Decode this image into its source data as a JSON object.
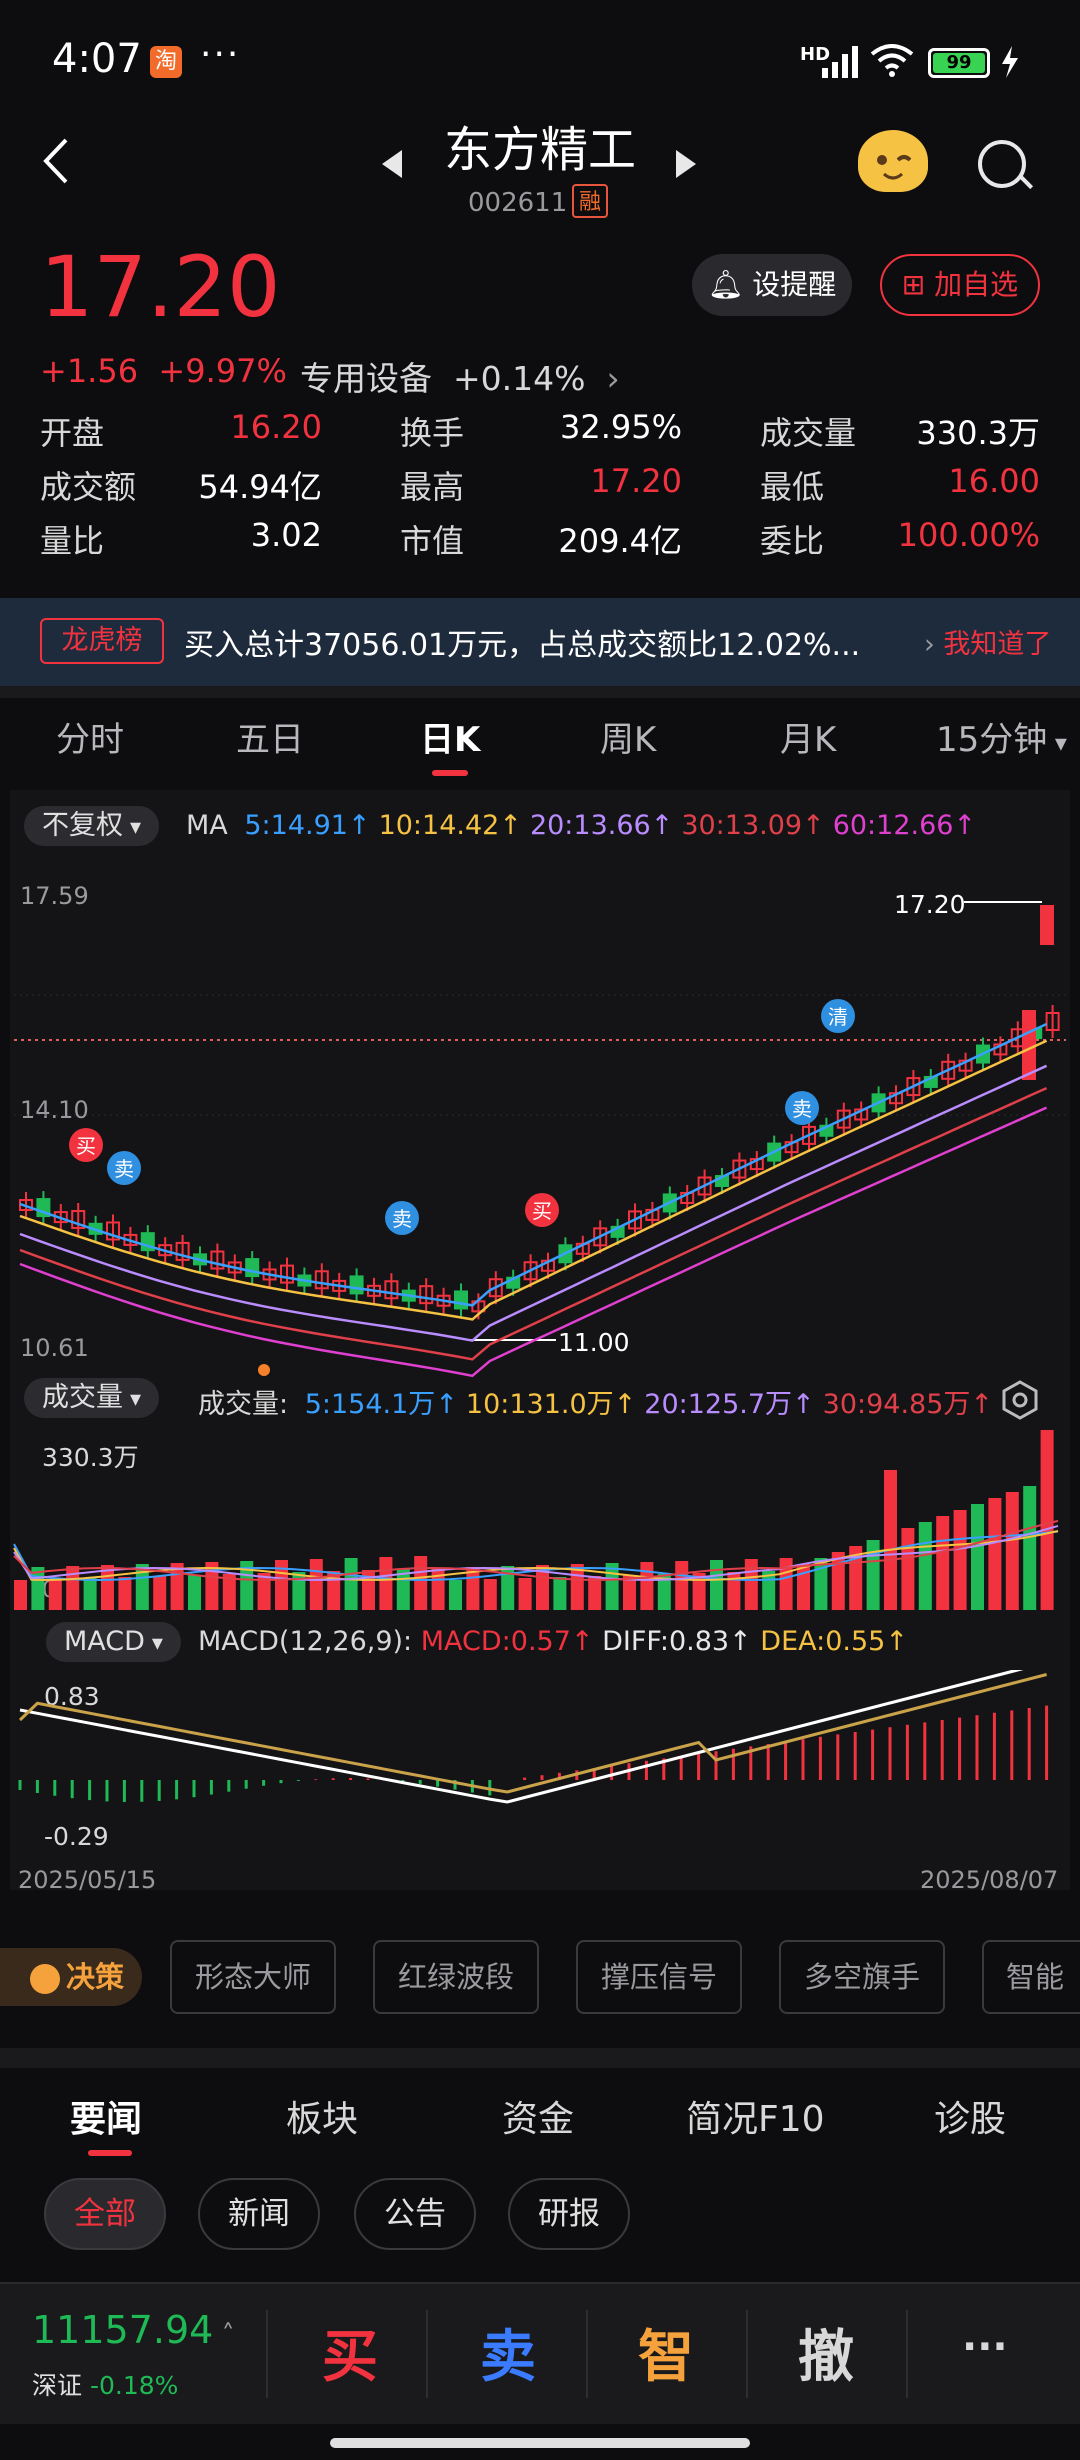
{
  "status_bar": {
    "time": "4:07",
    "app_badge": "淘",
    "more": "···",
    "network": "HD",
    "battery": "99"
  },
  "header": {
    "title": "东方精工",
    "code": "002611",
    "margin_badge": "融"
  },
  "quote": {
    "price": "17.20",
    "change": "+1.56",
    "change_pct": "+9.97%",
    "sector": "专用设备",
    "sector_pct": "+0.14%",
    "alert_label": "设提醒",
    "fav_label": "加自选",
    "fields": [
      {
        "k": "开盘",
        "v": "16.20",
        "color": "red"
      },
      {
        "k": "换手",
        "v": "32.95%",
        "color": "white"
      },
      {
        "k": "成交量",
        "v": "330.3万",
        "color": "white"
      },
      {
        "k": "成交额",
        "v": "54.94亿",
        "color": "white"
      },
      {
        "k": "最高",
        "v": "17.20",
        "color": "red"
      },
      {
        "k": "最低",
        "v": "16.00",
        "color": "red"
      },
      {
        "k": "量比",
        "v": "3.02",
        "color": "white"
      },
      {
        "k": "市值",
        "v": "209.4亿",
        "color": "white"
      },
      {
        "k": "委比",
        "v": "100.00%",
        "color": "red"
      }
    ]
  },
  "banner": {
    "tag": "龙虎榜",
    "text": "买入总计37056.01万元，占总成交额比12.02%...",
    "dismiss": "我知道了"
  },
  "period_tabs": [
    "分时",
    "五日",
    "日K",
    "周K",
    "月K",
    "15分钟"
  ],
  "kchart": {
    "adjust": "不复权",
    "ma_label": "MA",
    "ma": [
      "5:14.91↑",
      "10:14.42↑",
      "20:13.66↑",
      "30:13.09↑",
      "60:12.66↑"
    ],
    "ma_colors": [
      "#3aa0ff",
      "#f6c243",
      "#b98cff",
      "#e0404a",
      "#e040d0"
    ],
    "y_top": "17.59",
    "y_mid": "14.10",
    "y_bottom": "10.61",
    "high_label": "17.20",
    "low_label": "11.00",
    "signal_buy": "买",
    "signal_sell": "卖",
    "signal_clear": "清"
  },
  "volume": {
    "selector": "成交量",
    "label": "成交量:",
    "ma": [
      "5:154.1万↑",
      "10:131.0万↑",
      "20:125.7万↑",
      "30:94.85万↑"
    ],
    "ma_colors": [
      "#3aa0ff",
      "#f6c243",
      "#b98cff",
      "#e0404a"
    ],
    "y_top": "330.3万",
    "y_zero": "0"
  },
  "macd": {
    "selector": "MACD",
    "params": "MACD(12,26,9):",
    "macd": "MACD:0.57↑",
    "diff": "DIFF:0.83↑",
    "dea": "DEA:0.55↑",
    "y_top": "0.83",
    "y_bottom": "-0.29",
    "date_start": "2025/05/15",
    "date_end": "2025/08/07"
  },
  "decision": {
    "label": "决策",
    "tools": [
      "形态大师",
      "红绿波段",
      "撑压信号",
      "多空旗手",
      "智能"
    ]
  },
  "news_tabs": [
    "要闻",
    "板块",
    "资金",
    "简况F10",
    "诊股"
  ],
  "news_chips": [
    "全部",
    "新闻",
    "公告",
    "研报"
  ],
  "bottom_bar": {
    "index_value": "11157.94",
    "index_name": "深证",
    "index_pct": "-0.18%",
    "buy": "买",
    "sell": "卖",
    "smart": "智",
    "cancel": "撤",
    "more": "···"
  }
}
